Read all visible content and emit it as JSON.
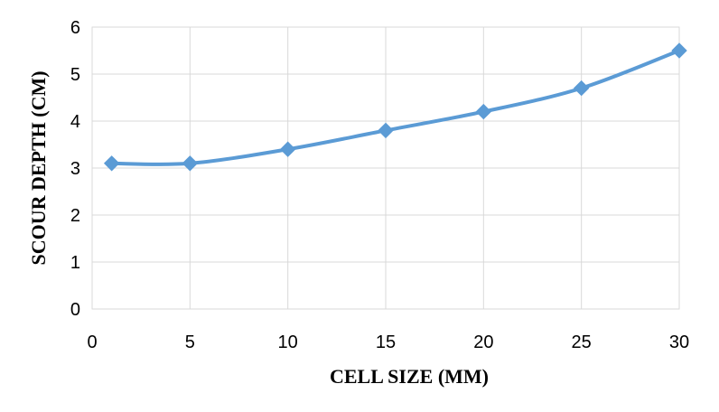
{
  "chart_data": {
    "type": "line",
    "title": "",
    "xlabel": "CELL SIZE (MM)",
    "ylabel": "SCOUR DEPTH (CM)",
    "xlim": [
      0,
      30
    ],
    "ylim": [
      0,
      6
    ],
    "xticks": [
      0,
      5,
      10,
      15,
      20,
      25,
      30
    ],
    "yticks": [
      0,
      1,
      2,
      3,
      4,
      5,
      6
    ],
    "grid": true,
    "legend": "none",
    "marker": "diamond",
    "smooth": true,
    "line_color": "#5b9bd5",
    "series": [
      {
        "x": [
          1,
          5,
          10,
          15,
          20,
          25,
          30
        ],
        "values": [
          3.1,
          3.1,
          3.4,
          3.8,
          4.2,
          4.7,
          5.5
        ]
      }
    ]
  }
}
